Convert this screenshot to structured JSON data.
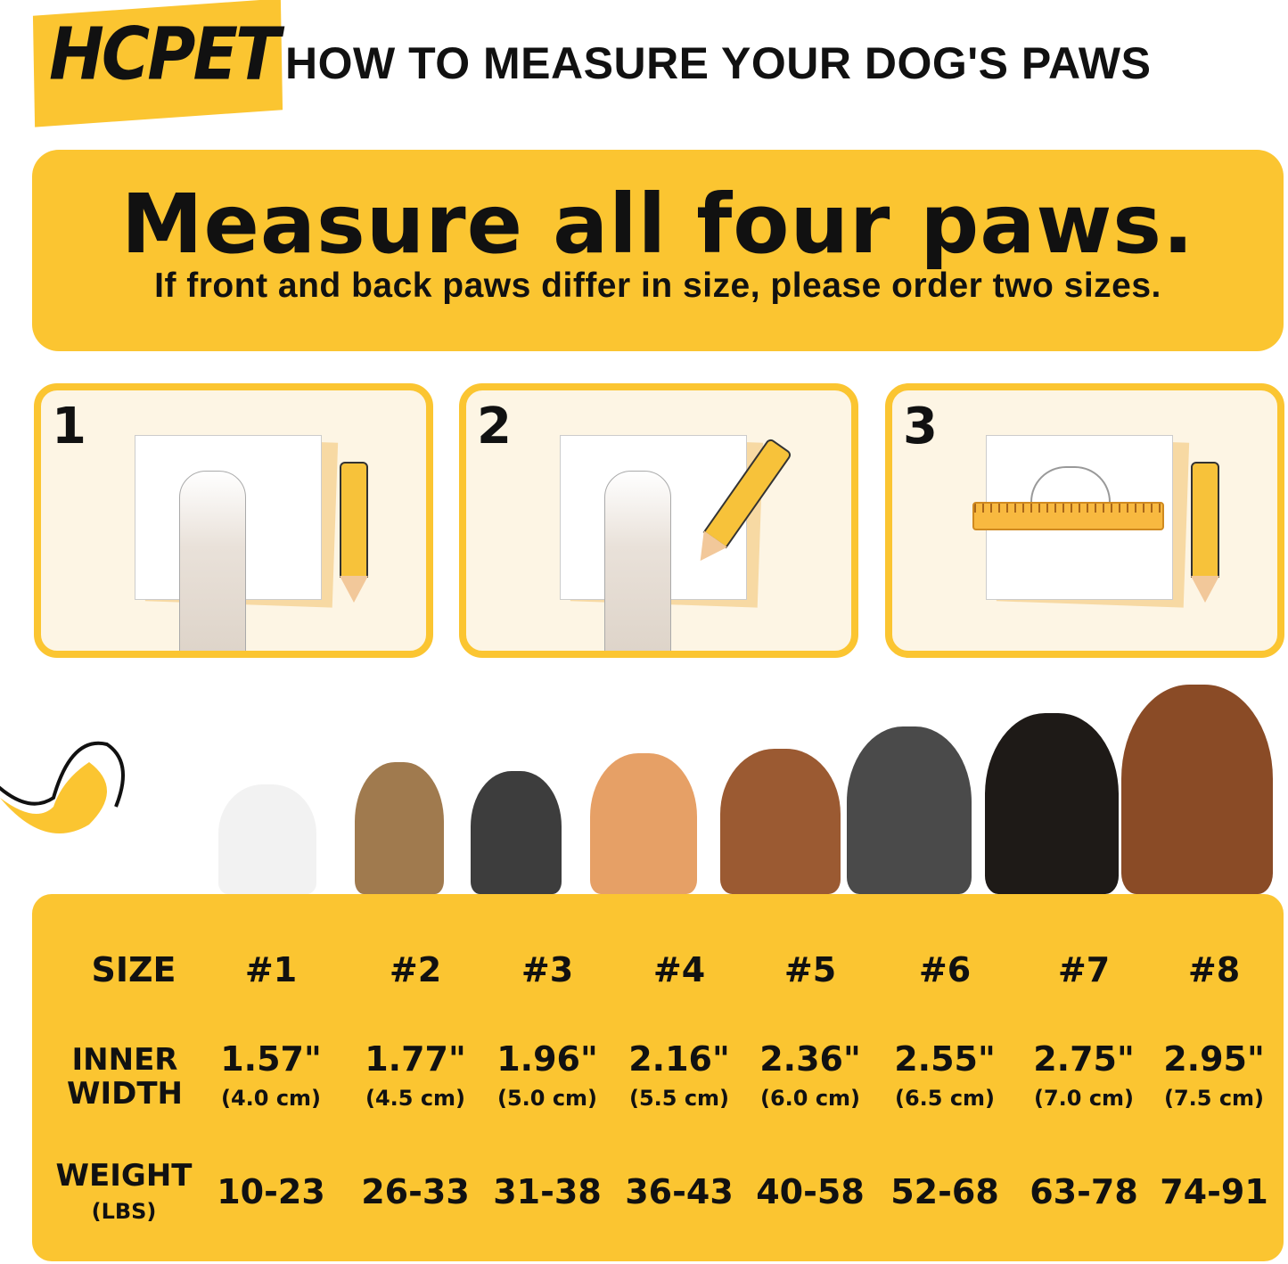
{
  "brand": {
    "logo": "HCPET",
    "color": "#fbc531"
  },
  "header": {
    "title": "HOW TO MEASURE YOUR DOG'S PAWS"
  },
  "banner": {
    "headline": "Measure all four paws.",
    "subline": "If front and back paws differ in size, please order two sizes."
  },
  "steps": [
    {
      "number": "1"
    },
    {
      "number": "2"
    },
    {
      "number": "3"
    }
  ],
  "table": {
    "size_label": "SIZE",
    "width_label": [
      "INNER",
      "WIDTH"
    ],
    "weight_label": [
      "WEIGHT",
      "(LBS)"
    ],
    "sizes": [
      "#1",
      "#2",
      "#3",
      "#4",
      "#5",
      "#6",
      "#7",
      "#8"
    ],
    "inches": [
      "1.57\"",
      "1.77\"",
      "1.96\"",
      "2.16\"",
      "2.36\"",
      "2.55\"",
      "2.75\"",
      "2.95\""
    ],
    "cm": [
      "(4.0 cm)",
      "(4.5 cm)",
      "(5.0 cm)",
      "(5.5 cm)",
      "(6.0 cm)",
      "(6.5 cm)",
      "(7.0 cm)",
      "(7.5 cm)"
    ],
    "weights": [
      "10-23",
      "26-33",
      "31-38",
      "36-43",
      "40-58",
      "52-68",
      "63-78",
      "74-91"
    ]
  }
}
